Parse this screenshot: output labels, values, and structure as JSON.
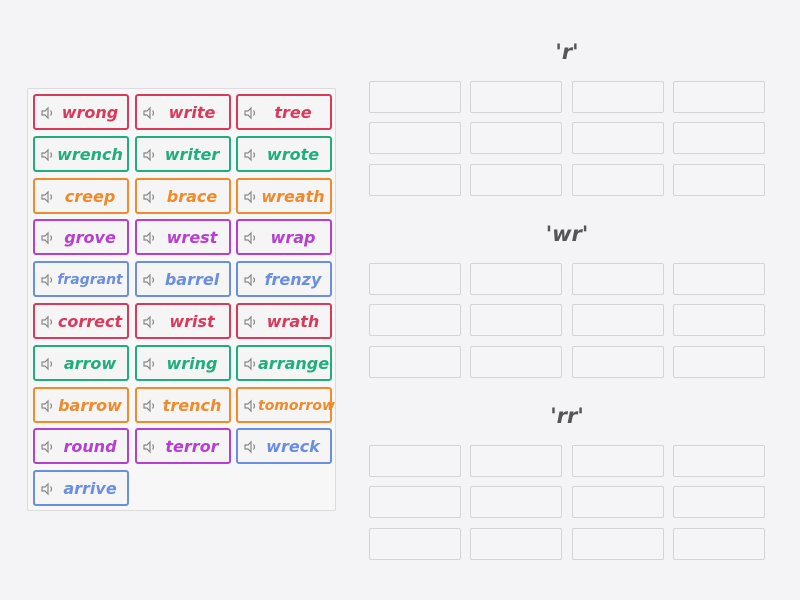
{
  "activity": "Group sort",
  "tiles": [
    {
      "word": "wrong",
      "color": "#d93a5c"
    },
    {
      "word": "write",
      "color": "#d93a5c"
    },
    {
      "word": "tree",
      "color": "#d93a5c"
    },
    {
      "word": "wrench",
      "color": "#1fae7c"
    },
    {
      "word": "writer",
      "color": "#1fae7c"
    },
    {
      "word": "wrote",
      "color": "#1fae7c"
    },
    {
      "word": "creep",
      "color": "#f08a2b"
    },
    {
      "word": "brace",
      "color": "#f08a2b"
    },
    {
      "word": "wreath",
      "color": "#f08a2b"
    },
    {
      "word": "grove",
      "color": "#b63fd0"
    },
    {
      "word": "wrest",
      "color": "#b63fd0"
    },
    {
      "word": "wrap",
      "color": "#b63fd0"
    },
    {
      "word": "fragrant",
      "color": "#6a8ee0"
    },
    {
      "word": "barrel",
      "color": "#6a8ee0"
    },
    {
      "word": "frenzy",
      "color": "#6a8ee0"
    },
    {
      "word": "correct",
      "color": "#d93a5c"
    },
    {
      "word": "wrist",
      "color": "#d93a5c"
    },
    {
      "word": "wrath",
      "color": "#d93a5c"
    },
    {
      "word": "arrow",
      "color": "#1fae7c"
    },
    {
      "word": "wring",
      "color": "#1fae7c"
    },
    {
      "word": "arrange",
      "color": "#1fae7c"
    },
    {
      "word": "barrow",
      "color": "#f08a2b"
    },
    {
      "word": "trench",
      "color": "#f08a2b"
    },
    {
      "word": "tomorrow",
      "color": "#f08a2b"
    },
    {
      "word": "round",
      "color": "#b63fd0"
    },
    {
      "word": "terror",
      "color": "#b63fd0"
    },
    {
      "word": "wreck",
      "color": "#6a8ee0"
    },
    {
      "word": "arrive",
      "color": "#6a8ee0"
    }
  ],
  "groups": [
    {
      "label": "'r'"
    },
    {
      "label": "'wr'"
    },
    {
      "label": "'rr'"
    }
  ]
}
